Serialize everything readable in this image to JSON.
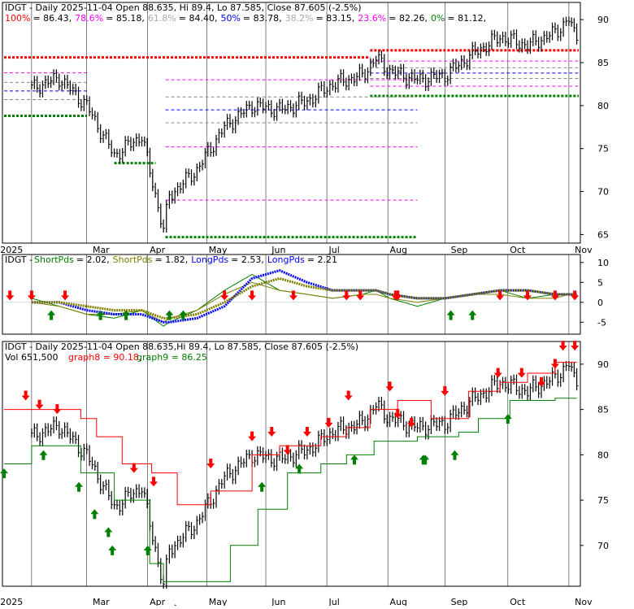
{
  "panels": {
    "fib": {
      "header": {
        "title": "IDGT - Daily 2025-11-04 Open 88.635, Hi 89.4, Lo 87.585, Close 87.605 (-2.5%)",
        "levels": [
          {
            "label": "100%",
            "value": "86.43",
            "color": "#ff0000"
          },
          {
            "label": "78.6%",
            "value": "85.18",
            "color": "#ff00ff"
          },
          {
            "label": "61.8%",
            "value": "84.40",
            "color": "#aaaaaa"
          },
          {
            "label": "50%",
            "value": "83.78",
            "color": "#0000ff"
          },
          {
            "label": "38.2%",
            "value": "83.15",
            "color": "#aaaaaa"
          },
          {
            "label": "23.6%",
            "value": "82.26",
            "color": "#ff00ff"
          },
          {
            "label": "0%",
            "value": "81.12",
            "color": "#008000"
          }
        ]
      },
      "y_ticks": [
        "90",
        "85",
        "80",
        "75",
        "70",
        "65"
      ]
    },
    "osc": {
      "header": {
        "prefix": "IDGT - ",
        "items": [
          {
            "label": "ShortPds = 2.02",
            "color": "#008000"
          },
          {
            "label": "ShortPds = 1.82",
            "color": "#808000"
          },
          {
            "label": "LongPds = 2.53",
            "color": "#0000ff"
          },
          {
            "label": "LongPds = 2.21",
            "color": "#0000ff"
          }
        ]
      },
      "y_ticks": [
        "10",
        "5",
        "0",
        "-5"
      ]
    },
    "price": {
      "header": {
        "title": "IDGT - Daily 2025-11-04 Open 88.635,Hi 89.4, Lo 87.585, Close 87.605 (-2.5%)",
        "vol": "Vol 651,500",
        "graph8": "graph8 = 90.18,",
        "graph9": "graph9 = 86.25"
      },
      "y_ticks": [
        "90",
        "85",
        "80",
        "75",
        "70"
      ]
    }
  },
  "x_labels": [
    "2025",
    "Mar",
    "Apr",
    "May",
    "Jun",
    "Jul",
    "Aug",
    "Sep",
    "Oct",
    "Nov"
  ],
  "chart_data": {
    "type": "line",
    "ticker": "IDGT",
    "dates": [
      "2025-01-31",
      "2025-02-14",
      "2025-02-28",
      "2025-03-14",
      "2025-03-28",
      "2025-04-08",
      "2025-04-11",
      "2025-04-25",
      "2025-05-09",
      "2025-05-23",
      "2025-06-06",
      "2025-06-20",
      "2025-07-03",
      "2025-07-18",
      "2025-07-25",
      "2025-08-01",
      "2025-08-15",
      "2025-08-29",
      "2025-09-12",
      "2025-09-26",
      "2025-10-10",
      "2025-10-24",
      "2025-10-31",
      "2025-11-04"
    ],
    "close": [
      82.0,
      83.2,
      80.0,
      74.2,
      76.5,
      65.5,
      69.5,
      72.5,
      77.5,
      80.0,
      79.5,
      80.5,
      82.5,
      83.5,
      85.5,
      84.0,
      83.0,
      83.5,
      86.0,
      88.0,
      87.0,
      88.5,
      90.0,
      87.6
    ],
    "fib_levels": {
      "100%": 86.43,
      "78.6%": 85.18,
      "61.8%": 84.4,
      "50%": 83.78,
      "38.2%": 83.15,
      "23.6%": 82.26,
      "0%": 81.12
    },
    "oscillator": {
      "short_1": [
        1,
        -1,
        -3,
        -4,
        -2,
        -6,
        -5,
        -2,
        3,
        7,
        3,
        2,
        1,
        2,
        3,
        1,
        -1,
        1,
        2,
        3,
        1,
        2,
        2,
        2
      ],
      "short_2": [
        0,
        -1,
        -3,
        -3,
        -2,
        -5,
        -4,
        -2,
        2,
        5,
        3,
        2,
        1,
        2,
        2,
        1,
        0,
        1,
        2,
        2,
        1,
        1,
        2,
        2
      ],
      "long_1": [
        0,
        0,
        -2,
        -3,
        -3,
        -5,
        -5,
        -4,
        -1,
        6,
        8,
        5,
        3,
        3,
        3,
        2,
        1,
        1,
        2,
        3,
        3,
        2,
        2,
        2
      ],
      "long_2": [
        0,
        0,
        -1,
        -2,
        -2,
        -4,
        -4,
        -3,
        0,
        4,
        6,
        4,
        3,
        3,
        3,
        2,
        1,
        1,
        2,
        3,
        3,
        2,
        2,
        2
      ]
    },
    "graph8": 90.18,
    "graph9": 86.25,
    "ylim_price": [
      64,
      92
    ],
    "ylim_osc": [
      -8,
      12
    ]
  }
}
